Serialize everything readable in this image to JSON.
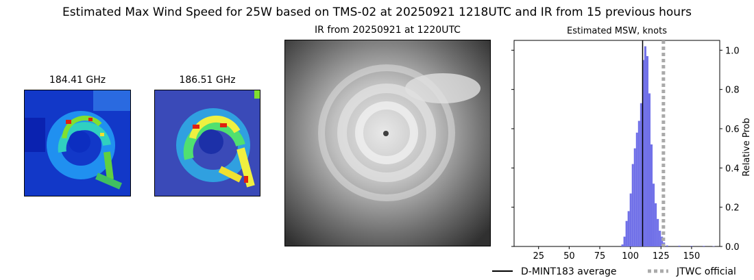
{
  "figure": {
    "title": "Estimated Max Wind Speed for 25W based on TMS-02 at 20250921 1218UTC and IR from 15 previous hours"
  },
  "panels": {
    "mw1_title": "184.41 GHz",
    "mw2_title": "186.51 GHz",
    "ir_title": "IR from 20250921 at 1220UTC"
  },
  "colors": {
    "hist_bar": "#7070e8",
    "average_line": "#000000",
    "official_line": "#aaaaaa",
    "mw1_background": "#1030c8",
    "mw2_background": "#3848b8"
  },
  "chart_data": {
    "type": "bar",
    "title": "Estimated MSW, knots",
    "ylabel": "Relative Prob",
    "xlim": [
      5,
      173
    ],
    "ylim": [
      0,
      1.05
    ],
    "xticks": [
      25,
      50,
      75,
      100,
      125,
      150
    ],
    "yticks": [
      0.0,
      0.2,
      0.4,
      0.6,
      0.8,
      1.0
    ],
    "bin_width": 1.7,
    "bins_x": [
      93.5,
      95.2,
      96.9,
      98.6,
      100.3,
      102.0,
      103.7,
      105.4,
      107.1,
      108.8,
      110.5,
      112.2,
      113.9,
      115.6,
      117.3,
      119.0,
      120.7,
      122.4,
      124.1,
      125.8,
      127.5,
      130,
      140,
      150,
      160,
      168
    ],
    "bins_y": [
      0.01,
      0.05,
      0.13,
      0.18,
      0.27,
      0.42,
      0.5,
      0.58,
      0.64,
      0.73,
      0.95,
      1.02,
      0.97,
      0.78,
      0.52,
      0.32,
      0.22,
      0.14,
      0.08,
      0.05,
      0.02,
      0.005,
      0.004,
      0.003,
      0.003,
      0.002
    ],
    "average": 110,
    "official": 127,
    "legend": [
      {
        "label": "D-MINT183 average",
        "style": "solid-black"
      },
      {
        "label": "JTWC official",
        "style": "dotted-gray"
      }
    ]
  }
}
